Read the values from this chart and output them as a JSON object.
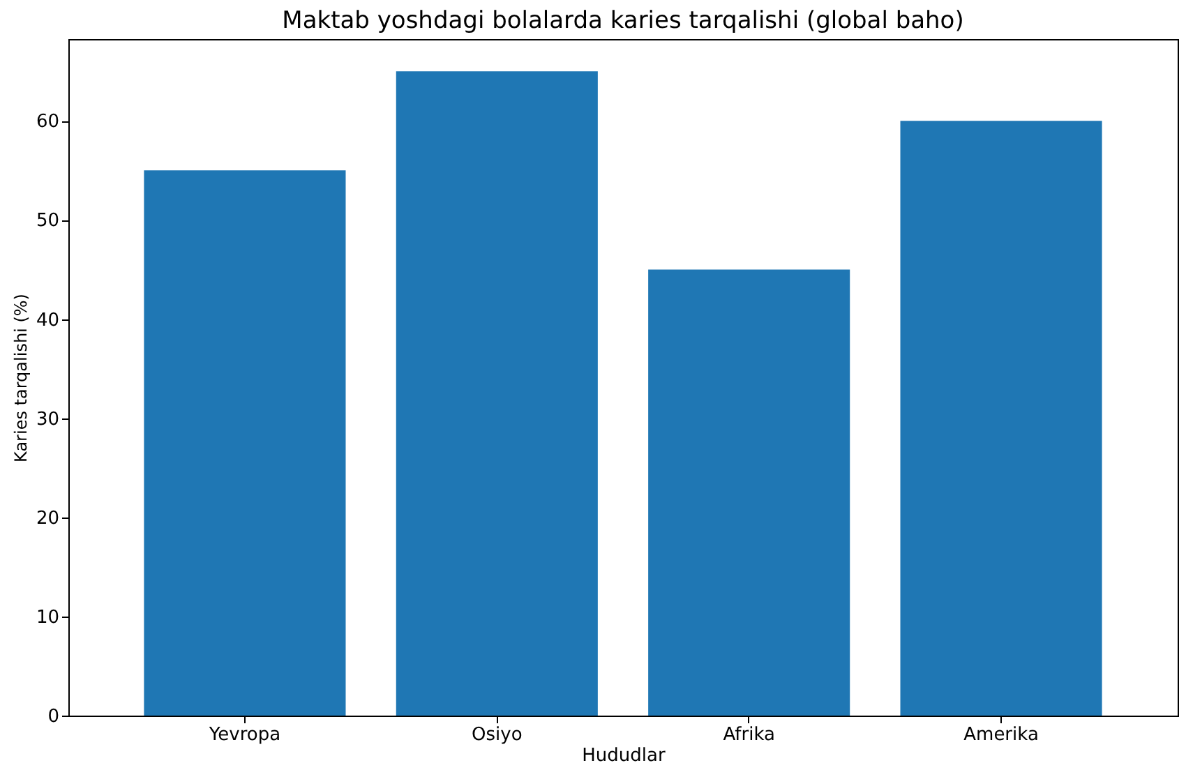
{
  "chart_data": {
    "type": "bar",
    "title": "Maktab yoshdagi bolalarda karies tarqalishi (global baho)",
    "xlabel": "Hududlar",
    "ylabel": "Karies tarqalishi (%)",
    "categories": [
      "Yevropa",
      "Osiyo",
      "Afrika",
      "Amerika"
    ],
    "values": [
      55,
      65,
      45,
      60
    ],
    "color": "#1f77b4",
    "ylim": [
      0,
      68.25
    ],
    "yticks": [
      0,
      10,
      20,
      30,
      40,
      50,
      60
    ],
    "grid": false
  }
}
